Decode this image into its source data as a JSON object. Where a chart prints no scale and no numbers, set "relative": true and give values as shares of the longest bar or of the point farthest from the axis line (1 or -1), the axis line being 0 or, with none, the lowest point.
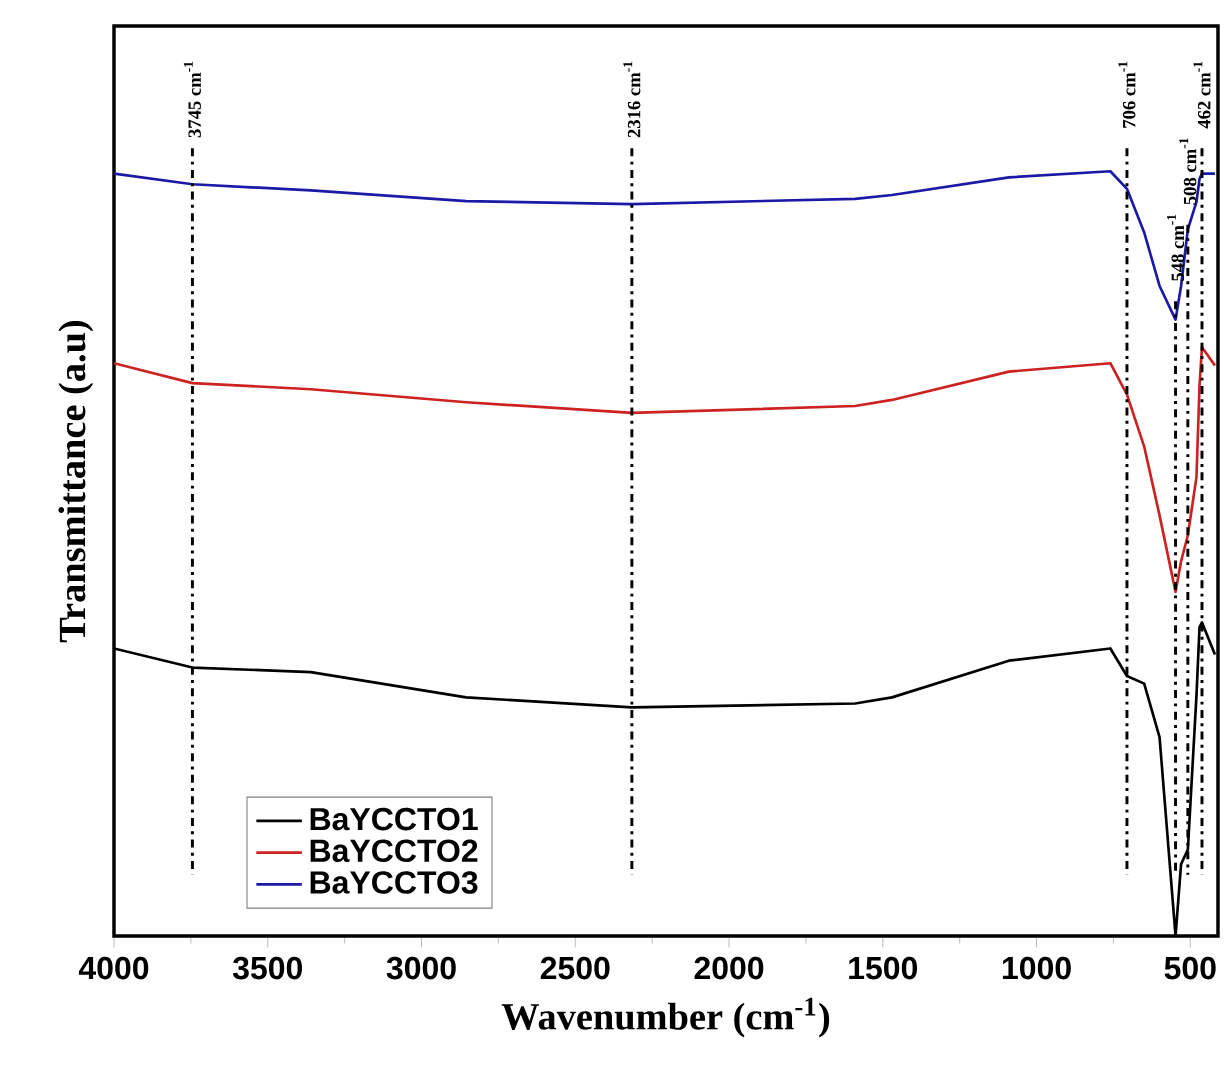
{
  "chart_data": {
    "type": "line",
    "xlabel": "Wavenumber (cm$^{-1}$)",
    "ylabel": "Transmittance (a.u)",
    "relative": true,
    "xlim": [
      4000,
      410
    ],
    "xticks": [
      4000,
      3500,
      3000,
      2500,
      2000,
      1500,
      1000,
      500
    ],
    "legend": "bottom left",
    "line_style": "solid",
    "x": [
      4000,
      3745,
      3360,
      2855,
      2316,
      1590,
      1470,
      1090,
      760,
      706,
      650,
      600,
      548,
      530,
      508,
      480,
      470,
      462,
      420
    ],
    "series": [
      {
        "name": "BaYCCTO1",
        "color": "#000000",
        "values": [
          0.376,
          0.351,
          0.345,
          0.312,
          0.299,
          0.304,
          0.312,
          0.36,
          0.376,
          0.34,
          0.33,
          0.26,
          0.0,
          0.094,
          0.113,
          0.314,
          0.404,
          0.41,
          0.368
        ]
      },
      {
        "name": "BaYCCTO2",
        "color": "#cc2222",
        "values": [
          0.749,
          0.723,
          0.715,
          0.698,
          0.684,
          0.693,
          0.701,
          0.738,
          0.749,
          0.708,
          0.64,
          0.55,
          0.45,
          0.49,
          0.524,
          0.6,
          0.72,
          0.77,
          0.746
        ]
      },
      {
        "name": "BaYCCTO3",
        "color": "#1a1aa6",
        "values": [
          0.997,
          0.983,
          0.975,
          0.961,
          0.957,
          0.964,
          0.969,
          0.992,
          1.0,
          0.977,
          0.92,
          0.85,
          0.806,
          0.85,
          0.924,
          0.96,
          0.99,
          0.997,
          0.997
        ]
      }
    ],
    "ref_lines": [
      {
        "axis": "x",
        "value": 3745,
        "label": "3745 cm$^{-1}$",
        "line_style": "dashdot"
      },
      {
        "axis": "x",
        "value": 2316,
        "label": "2316 cm$^{-1}$",
        "line_style": "dashdot"
      },
      {
        "axis": "x",
        "value": 706,
        "label": "706 cm$^{-1}$",
        "line_style": "dashdot"
      },
      {
        "axis": "x",
        "value": 548,
        "label": "548 cm$^{-1}$",
        "line_style": "dashdot"
      },
      {
        "axis": "x",
        "value": 508,
        "label": "508 cm$^{-1}$",
        "line_style": "dashdot"
      },
      {
        "axis": "x",
        "value": 462,
        "label": "462 cm$^{-1}$",
        "line_style": "dashdot"
      }
    ]
  }
}
